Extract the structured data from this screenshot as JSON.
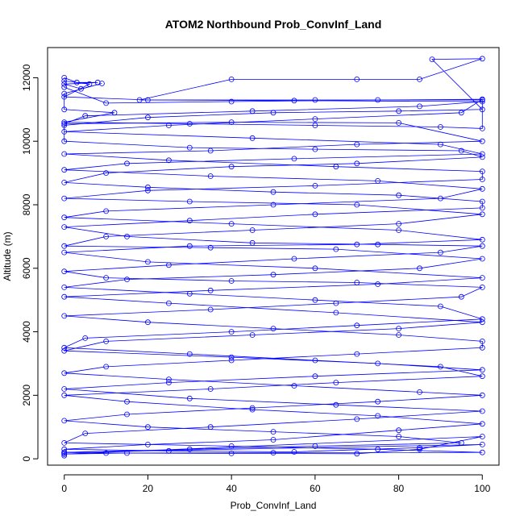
{
  "chart_data": {
    "type": "scatter",
    "title": "ATOM2 Northbound Prob_ConvInf_Land",
    "xlabel": "Prob_ConvInf_Land",
    "ylabel": "Altitude (m)",
    "xlim": [
      -4,
      104
    ],
    "ylim": [
      -200,
      12950
    ],
    "x_ticks": [
      0,
      20,
      40,
      60,
      80,
      100
    ],
    "y_ticks": [
      0,
      2000,
      4000,
      6000,
      8000,
      10000,
      12000
    ],
    "grid": false,
    "style": "points connected by lines (type='b')",
    "point_symbol": "open circle",
    "series_color": "#0000ff",
    "series": [
      {
        "values": [
          [
            0,
            12000
          ],
          [
            3,
            11850
          ],
          [
            8,
            11850
          ],
          [
            0,
            11800
          ],
          [
            4,
            11650
          ],
          [
            9,
            11820
          ],
          [
            0,
            11500
          ],
          [
            0,
            11000
          ],
          [
            12,
            10900
          ],
          [
            0,
            10600
          ],
          [
            30,
            10550
          ],
          [
            60,
            10500
          ],
          [
            90,
            10450
          ],
          [
            100,
            10400
          ],
          [
            100,
            11300
          ],
          [
            60,
            11300
          ],
          [
            18,
            11300
          ],
          [
            40,
            11950
          ],
          [
            70,
            11950
          ],
          [
            85,
            11950
          ],
          [
            100,
            12600
          ],
          [
            88,
            12580
          ],
          [
            100,
            11000
          ],
          [
            80,
            10950
          ],
          [
            50,
            10900
          ],
          [
            20,
            10750
          ],
          [
            0,
            10500
          ],
          [
            0,
            10000
          ],
          [
            30,
            9800
          ],
          [
            60,
            9750
          ],
          [
            95,
            9700
          ],
          [
            100,
            9500
          ],
          [
            70,
            9300
          ],
          [
            40,
            9200
          ],
          [
            10,
            9000
          ],
          [
            0,
            8700
          ],
          [
            20,
            8550
          ],
          [
            50,
            8400
          ],
          [
            80,
            8300
          ],
          [
            100,
            8100
          ],
          [
            100,
            7900
          ],
          [
            60,
            7700
          ],
          [
            30,
            7500
          ],
          [
            0,
            7300
          ],
          [
            15,
            7000
          ],
          [
            45,
            6800
          ],
          [
            75,
            6750
          ],
          [
            100,
            6700
          ],
          [
            90,
            6500
          ],
          [
            55,
            6300
          ],
          [
            25,
            6100
          ],
          [
            0,
            5900
          ],
          [
            10,
            5700
          ],
          [
            40,
            5600
          ],
          [
            70,
            5550
          ],
          [
            100,
            5400
          ],
          [
            95,
            5100
          ],
          [
            65,
            4900
          ],
          [
            35,
            4700
          ],
          [
            0,
            4500
          ],
          [
            20,
            4300
          ],
          [
            50,
            4100
          ],
          [
            80,
            3900
          ],
          [
            100,
            3700
          ],
          [
            100,
            3500
          ],
          [
            70,
            3300
          ],
          [
            40,
            3100
          ],
          [
            10,
            2900
          ],
          [
            0,
            2700
          ],
          [
            25,
            2500
          ],
          [
            55,
            2300
          ],
          [
            85,
            2100
          ],
          [
            100,
            2000
          ],
          [
            75,
            1800
          ],
          [
            45,
            1600
          ],
          [
            15,
            1400
          ],
          [
            0,
            1200
          ],
          [
            20,
            1000
          ],
          [
            50,
            850
          ],
          [
            80,
            700
          ],
          [
            95,
            500
          ],
          [
            60,
            400
          ],
          [
            30,
            300
          ],
          [
            0,
            200
          ],
          [
            10,
            180
          ],
          [
            40,
            170
          ],
          [
            70,
            160
          ],
          [
            85,
            300
          ],
          [
            100,
            700
          ],
          [
            0,
            150
          ],
          [
            0,
            100
          ]
        ]
      },
      {
        "values": [
          [
            0,
            11900
          ],
          [
            6,
            11800
          ],
          [
            0,
            11400
          ],
          [
            20,
            11300
          ],
          [
            55,
            11280
          ],
          [
            100,
            11250
          ],
          [
            85,
            11100
          ],
          [
            45,
            10950
          ],
          [
            5,
            10800
          ],
          [
            0,
            10550
          ],
          [
            40,
            10600
          ],
          [
            80,
            10580
          ],
          [
            100,
            10000
          ],
          [
            70,
            9900
          ],
          [
            35,
            9700
          ],
          [
            0,
            9600
          ],
          [
            25,
            9400
          ],
          [
            65,
            9200
          ],
          [
            100,
            9050
          ],
          [
            100,
            8800
          ],
          [
            60,
            8600
          ],
          [
            20,
            8450
          ],
          [
            0,
            8200
          ],
          [
            30,
            8100
          ],
          [
            70,
            8000
          ],
          [
            100,
            7700
          ],
          [
            80,
            7400
          ],
          [
            45,
            7200
          ],
          [
            10,
            7000
          ],
          [
            0,
            6700
          ],
          [
            35,
            6650
          ],
          [
            65,
            6600
          ],
          [
            100,
            6300
          ],
          [
            85,
            6000
          ],
          [
            50,
            5800
          ],
          [
            15,
            5650
          ],
          [
            0,
            5400
          ],
          [
            30,
            5200
          ],
          [
            60,
            5000
          ],
          [
            90,
            4800
          ],
          [
            100,
            4400
          ],
          [
            70,
            4200
          ],
          [
            40,
            4000
          ],
          [
            5,
            3800
          ],
          [
            0,
            3500
          ],
          [
            30,
            3300
          ],
          [
            60,
            3100
          ],
          [
            90,
            2900
          ],
          [
            100,
            2600
          ],
          [
            65,
            2400
          ],
          [
            35,
            2200
          ],
          [
            0,
            2000
          ],
          [
            15,
            1800
          ],
          [
            45,
            1550
          ],
          [
            75,
            1350
          ],
          [
            100,
            1100
          ],
          [
            80,
            900
          ],
          [
            50,
            600
          ],
          [
            20,
            450
          ],
          [
            0,
            300
          ],
          [
            25,
            250
          ],
          [
            55,
            220
          ],
          [
            85,
            350
          ],
          [
            100,
            450
          ],
          [
            0,
            200
          ]
        ]
      },
      {
        "values": [
          [
            0,
            11700
          ],
          [
            10,
            11200
          ],
          [
            40,
            11250
          ],
          [
            75,
            11300
          ],
          [
            100,
            11320
          ],
          [
            95,
            10900
          ],
          [
            60,
            10700
          ],
          [
            25,
            10500
          ],
          [
            0,
            10300
          ],
          [
            45,
            10100
          ],
          [
            90,
            9900
          ],
          [
            100,
            9600
          ],
          [
            55,
            9450
          ],
          [
            15,
            9300
          ],
          [
            0,
            9100
          ],
          [
            35,
            8900
          ],
          [
            75,
            8750
          ],
          [
            100,
            8500
          ],
          [
            90,
            8200
          ],
          [
            50,
            8000
          ],
          [
            10,
            7800
          ],
          [
            0,
            7600
          ],
          [
            40,
            7400
          ],
          [
            80,
            7200
          ],
          [
            100,
            6900
          ],
          [
            70,
            6750
          ],
          [
            30,
            6700
          ],
          [
            0,
            6500
          ],
          [
            20,
            6200
          ],
          [
            60,
            6000
          ],
          [
            100,
            5700
          ],
          [
            75,
            5500
          ],
          [
            35,
            5300
          ],
          [
            0,
            5100
          ],
          [
            25,
            4900
          ],
          [
            65,
            4600
          ],
          [
            100,
            4300
          ],
          [
            80,
            4100
          ],
          [
            45,
            3900
          ],
          [
            10,
            3700
          ],
          [
            0,
            3400
          ],
          [
            40,
            3200
          ],
          [
            75,
            3000
          ],
          [
            100,
            2800
          ],
          [
            60,
            2600
          ],
          [
            25,
            2400
          ],
          [
            0,
            2200
          ],
          [
            30,
            1900
          ],
          [
            65,
            1700
          ],
          [
            100,
            1500
          ],
          [
            70,
            1250
          ],
          [
            35,
            1000
          ],
          [
            5,
            800
          ],
          [
            0,
            500
          ],
          [
            40,
            400
          ],
          [
            75,
            300
          ],
          [
            100,
            200
          ],
          [
            50,
            190
          ],
          [
            15,
            180
          ],
          [
            0,
            150
          ]
        ]
      }
    ]
  }
}
